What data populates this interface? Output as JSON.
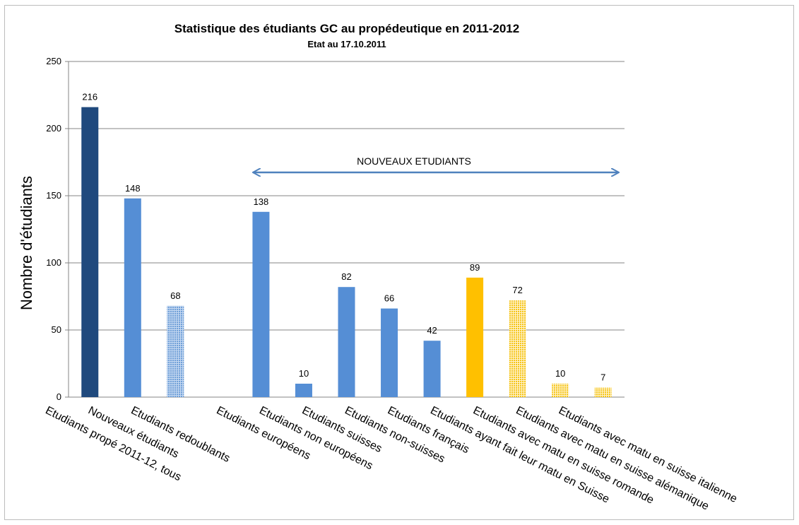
{
  "chart_data": {
    "type": "bar",
    "title": "Statistique des étudiants GC au propédeutique en 2011-2012",
    "subtitle": "Etat au 17.10.2011",
    "ylabel": "Nombre d'étudiants",
    "xlabel": "",
    "ylim": [
      0,
      250
    ],
    "yticks": [
      0,
      50,
      100,
      150,
      200,
      250
    ],
    "grid": true,
    "annotation": "NOUVEAUX ETUDIANTS",
    "bars": [
      {
        "category": "Etudiants propé 2011-12, tous",
        "value": 216,
        "label": "216",
        "color": "#1f497d",
        "pattern": "solid"
      },
      {
        "category": "Nouveaux étudiants",
        "value": 148,
        "label": "148",
        "color": "#558ed5",
        "pattern": "solid"
      },
      {
        "category": "Etudiants redoublants",
        "value": 68,
        "label": "68",
        "color": "#8eb4e3",
        "pattern": "dots"
      },
      {
        "category": "Etudiants européens",
        "value": 138,
        "label": "138",
        "color": "#558ed5",
        "pattern": "solid"
      },
      {
        "category": "Etudiants non européens",
        "value": 10,
        "label": "10",
        "color": "#558ed5",
        "pattern": "solid"
      },
      {
        "category": "Etudiants suisses",
        "value": 82,
        "label": "82",
        "color": "#558ed5",
        "pattern": "solid"
      },
      {
        "category": "Etudiants non-suisses",
        "value": 66,
        "label": "66",
        "color": "#558ed5",
        "pattern": "solid"
      },
      {
        "category": "Etudiants  français",
        "value": 42,
        "label": "42",
        "color": "#558ed5",
        "pattern": "solid"
      },
      {
        "category": "Etudiants ayant fait leur matu en Suisse",
        "value": 89,
        "label": "89",
        "color": "#ffc000",
        "pattern": "solid"
      },
      {
        "category": "Etudiants avec matu en suisse romande",
        "value": 72,
        "label": "72",
        "color": "#ffd966",
        "pattern": "dots"
      },
      {
        "category": "Etudiants avec matu en suisse alémanique",
        "value": 10,
        "label": "10",
        "color": "#ffd966",
        "pattern": "dots"
      },
      {
        "category": "Etudiants avec matu en suisse italienne",
        "value": 7,
        "label": "7",
        "color": "#ffd966",
        "pattern": "dots"
      }
    ]
  }
}
